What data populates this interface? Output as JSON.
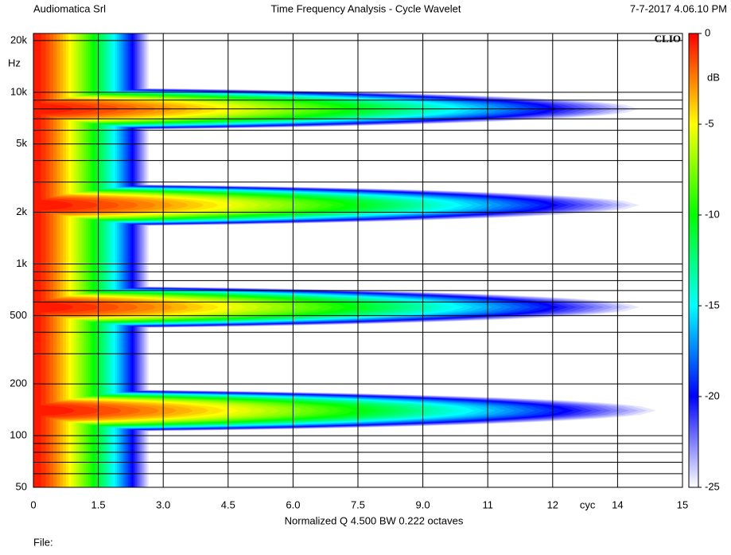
{
  "header": {
    "left": "Audiomatica Srl",
    "center": "Time Frequency Analysis - Cycle Wavelet",
    "right": "7-7-2017 4.06.10 PM"
  },
  "footer": {
    "file": "File:"
  },
  "chart_data": {
    "type": "heatmap",
    "brand": "CLIO",
    "x_unit": "cyc",
    "y_unit": "Hz",
    "xlabel": "Normalized  Q 4.500 BW 0.222 octaves",
    "xlim": [
      0,
      15
    ],
    "xticks": [
      0,
      1.5,
      {
        "value": 3,
        "label": "3.0"
      },
      4.5,
      {
        "value": 6,
        "label": "6.0"
      },
      7.5,
      {
        "value": 9,
        "label": "9.0"
      },
      {
        "value": 10.5,
        "label": "11"
      },
      12,
      {
        "value": 13.5,
        "label": "14"
      },
      15
    ],
    "ylim": [
      50,
      22000
    ],
    "log_y": true,
    "yticks": [
      50,
      100,
      200,
      500,
      {
        "value": 1000,
        "label": "1k"
      },
      {
        "value": 2000,
        "label": "2k"
      },
      {
        "value": 5000,
        "label": "5k"
      },
      {
        "value": 10000,
        "label": "10k"
      },
      {
        "value": 20000,
        "label": "20k"
      }
    ],
    "yminorticks": [
      60,
      70,
      80,
      90,
      300,
      400,
      600,
      700,
      800,
      900,
      3000,
      4000,
      6000,
      7000,
      8000,
      9000
    ],
    "grid": true,
    "onset_cycles": 2.7,
    "resonances": [
      {
        "freq": 8000,
        "cycles": 14.2
      },
      {
        "freq": 2200,
        "cycles": 14.2
      },
      {
        "freq": 560,
        "cycles": 14.2
      },
      {
        "freq": 140,
        "cycles": 14.6
      }
    ],
    "colorbar": {
      "label": "dB",
      "zlim": [
        -25,
        0
      ],
      "zticks": [
        0,
        -5,
        -10,
        -15,
        -20,
        -25
      ],
      "colors": [
        "#ff0000",
        "#ffff00",
        "#00ff00",
        "#00ffff",
        "#0000ff",
        "#ffffff"
      ]
    }
  }
}
